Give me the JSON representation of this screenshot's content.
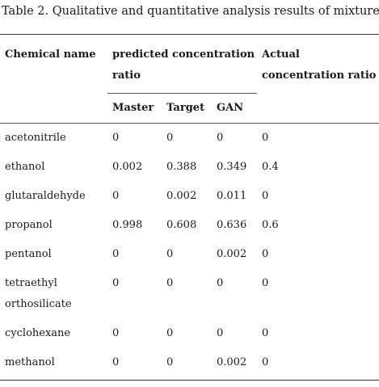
{
  "caption": "Table 2. Qualitative and quantitative analysis results of mixture.",
  "headers": {
    "chemical_name": "Chemical name",
    "predicted": "predicted concentration ratio",
    "actual": "Actual concentration ratio",
    "master": "Master",
    "target": "Target",
    "gan": "GAN"
  },
  "rows": [
    {
      "name": "acetonitrile",
      "master": "0",
      "target": "0",
      "gan": "0",
      "actual": "0"
    },
    {
      "name": "ethanol",
      "master": "0.002",
      "target": "0.388",
      "gan": "0.349",
      "actual": "0.4"
    },
    {
      "name": "glutaraldehyde",
      "master": "0",
      "target": "0.002",
      "gan": "0.011",
      "actual": "0"
    },
    {
      "name": "propanol",
      "master": "0.998",
      "target": "0.608",
      "gan": "0.636",
      "actual": "0.6"
    },
    {
      "name": "pentanol",
      "master": "0",
      "target": "0",
      "gan": "0.002",
      "actual": "0"
    },
    {
      "name": "tetraethyl orthosilicate",
      "master": "0",
      "target": "0",
      "gan": "0",
      "actual": "0"
    },
    {
      "name": "cyclohexane",
      "master": "0",
      "target": "0",
      "gan": "0",
      "actual": "0"
    },
    {
      "name": "methanol",
      "master": "0",
      "target": "0",
      "gan": "0.002",
      "actual": "0"
    }
  ]
}
